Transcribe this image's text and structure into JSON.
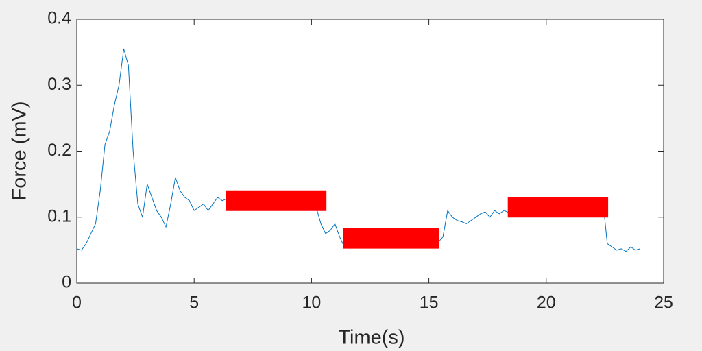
{
  "chart_data": {
    "type": "line",
    "xlabel": "Time(s)",
    "ylabel": "Force (mV)",
    "xlim": [
      0,
      25
    ],
    "xticks": [
      0,
      5,
      10,
      15,
      20,
      25
    ],
    "ylim": [
      0,
      0.4
    ],
    "yticks": [
      0,
      0.1,
      0.2,
      0.3,
      0.4
    ],
    "series": [
      {
        "color": "#0072bd",
        "x": [
          0,
          0.2,
          0.4,
          0.6,
          0.8,
          1,
          1.2,
          1.4,
          1.6,
          1.8,
          2,
          2.2,
          2.4,
          2.6,
          2.8,
          3,
          3.2,
          3.4,
          3.6,
          3.8,
          4,
          4.2,
          4.4,
          4.6,
          4.8,
          5,
          5.2,
          5.4,
          5.6,
          5.8,
          6,
          6.2,
          6.4,
          6.6,
          6.8,
          7,
          7.2,
          7.4,
          7.6,
          7.8,
          8,
          8.2,
          8.4,
          8.6,
          8.8,
          9,
          9.2,
          9.4,
          9.6,
          9.8,
          10,
          10.2,
          10.4,
          10.6,
          10.8,
          11,
          11.2,
          11.4,
          11.6,
          11.8,
          12,
          12.2,
          12.4,
          12.6,
          12.8,
          13,
          13.2,
          13.4,
          13.6,
          13.8,
          14,
          14.2,
          14.4,
          14.6,
          14.8,
          15,
          15.2,
          15.4,
          15.6,
          15.8,
          16,
          16.2,
          16.4,
          16.6,
          16.8,
          17,
          17.2,
          17.4,
          17.6,
          17.8,
          18,
          18.2,
          18.4,
          18.6,
          18.8,
          19,
          19.2,
          19.4,
          19.6,
          19.8,
          20,
          20.2,
          20.4,
          20.6,
          20.8,
          21,
          21.2,
          21.4,
          21.6,
          21.8,
          22,
          22.2,
          22.4,
          22.6,
          22.8,
          23,
          23.2,
          23.4,
          23.6,
          23.8,
          24
        ],
        "values": [
          0.052,
          0.05,
          0.06,
          0.075,
          0.09,
          0.14,
          0.21,
          0.23,
          0.27,
          0.3,
          0.355,
          0.33,
          0.2,
          0.12,
          0.1,
          0.15,
          0.13,
          0.11,
          0.1,
          0.085,
          0.12,
          0.16,
          0.14,
          0.13,
          0.125,
          0.11,
          0.115,
          0.12,
          0.11,
          0.12,
          0.13,
          0.125,
          0.128,
          0.125,
          0.12,
          0.125,
          0.13,
          0.128,
          0.135,
          0.132,
          0.13,
          0.128,
          0.125,
          0.13,
          0.128,
          0.125,
          0.13,
          0.128,
          0.12,
          0.11,
          0.115,
          0.115,
          0.09,
          0.075,
          0.08,
          0.09,
          0.07,
          0.055,
          0.06,
          0.065,
          0.068,
          0.066,
          0.07,
          0.065,
          0.068,
          0.072,
          0.07,
          0.075,
          0.07,
          0.068,
          0.072,
          0.07,
          0.075,
          0.068,
          0.07,
          0.072,
          0.06,
          0.062,
          0.07,
          0.11,
          0.1,
          0.095,
          0.093,
          0.09,
          0.095,
          0.1,
          0.105,
          0.108,
          0.1,
          0.11,
          0.105,
          0.11,
          0.107,
          0.11,
          0.112,
          0.115,
          0.12,
          0.115,
          0.12,
          0.11,
          0.12,
          0.125,
          0.12,
          0.118,
          0.125,
          0.12,
          0.122,
          0.125,
          0.12,
          0.118,
          0.115,
          0.12,
          0.13,
          0.06,
          0.055,
          0.05,
          0.052,
          0.048,
          0.055,
          0.05,
          0.052
        ],
        "width": 1
      },
      {
        "color": "#ff0000",
        "x": [
          6.8,
          10.2,
          null,
          11.8,
          15,
          null,
          18.8,
          22.2
        ],
        "values": [
          0.125,
          0.125,
          null,
          0.068,
          0.068,
          null,
          0.115,
          0.115
        ],
        "width": 30
      }
    ]
  }
}
